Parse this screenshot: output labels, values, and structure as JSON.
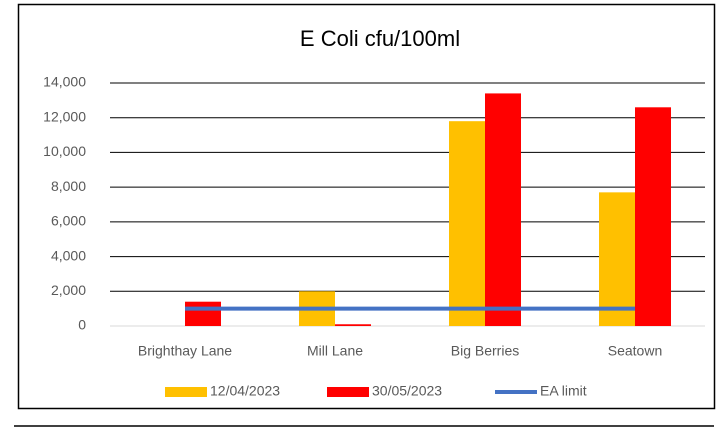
{
  "chart_data": {
    "type": "bar",
    "title": "E Coli cfu/100ml",
    "categories": [
      "Brighthay Lane",
      "Mill Lane",
      "Big Berries",
      "Seatown"
    ],
    "series": [
      {
        "name": "12/04/2023",
        "color": "#ffc000",
        "values": [
          0,
          2000,
          11800,
          7700
        ]
      },
      {
        "name": "30/05/2023",
        "color": "#ff0000",
        "values": [
          1400,
          100,
          13400,
          12600
        ]
      },
      {
        "name": "EA limit",
        "color": "#4472c4",
        "type": "line",
        "values": [
          1000,
          1000,
          1000,
          1000
        ]
      }
    ],
    "ylim": [
      0,
      14000
    ],
    "yticks": [
      0,
      {
        "value": 2000,
        "label": "2,000"
      },
      {
        "value": 4000,
        "label": "4,000"
      },
      {
        "value": 6000,
        "label": "6,000"
      },
      {
        "value": 8000,
        "label": "8,000"
      },
      {
        "value": 10000,
        "label": "10,000"
      },
      {
        "value": 12000,
        "label": "12,000"
      },
      {
        "value": 14000,
        "label": "14,000"
      }
    ],
    "grid": true,
    "legend": "bottom"
  }
}
